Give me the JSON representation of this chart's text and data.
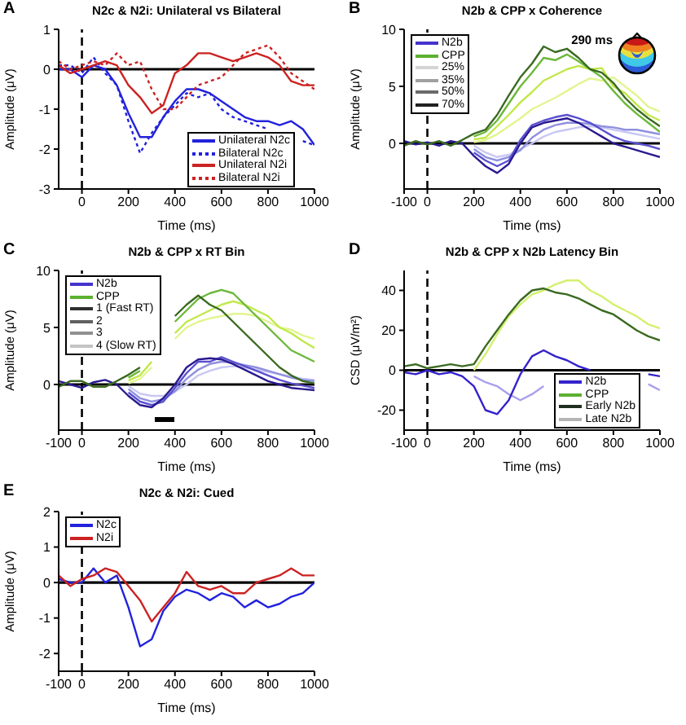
{
  "chart_data": [
    {
      "type": "line",
      "title": "N2c & N2i: Unilateral vs Bilateral",
      "annotations": [
        "A"
      ],
      "xlabel": "Time (ms)",
      "ylabel": "Amplitude (μV)",
      "xlim": [
        -100,
        1000
      ],
      "xticks": [
        0,
        200,
        400,
        600,
        800,
        1000
      ],
      "ylim": [
        -3,
        1
      ],
      "yticks": [
        -3,
        -2,
        -1,
        0,
        1
      ],
      "legend": "bottom right",
      "ref_lines": [
        {
          "axis": "y",
          "value": 0,
          "color": "#000000"
        },
        {
          "axis": "x",
          "value": 0,
          "color": "#000000",
          "line_style": "dashed"
        }
      ],
      "x": [
        -100,
        -50,
        0,
        50,
        100,
        150,
        200,
        250,
        300,
        350,
        400,
        450,
        500,
        550,
        600,
        650,
        700,
        750,
        800,
        850,
        900,
        950,
        1000
      ],
      "series": [
        {
          "name": "Unilateral N2c",
          "color": "#2222dd",
          "line_style": "solid",
          "values": [
            0,
            0,
            -0.2,
            0.1,
            0,
            -0.4,
            -1.1,
            -1.7,
            -1.7,
            -1.2,
            -0.8,
            -0.5,
            -0.5,
            -0.6,
            -0.8,
            -1.0,
            -1.2,
            -1.3,
            -1.3,
            -1.4,
            -1.3,
            -1.5,
            -1.9
          ]
        },
        {
          "name": "Bilateral N2c",
          "color": "#2222dd",
          "line_style": "dotted",
          "values": [
            0.1,
            0.1,
            -0.1,
            0.3,
            -0.1,
            -0.4,
            -1.3,
            -2.1,
            -1.6,
            -1.2,
            -0.9,
            -0.6,
            -0.7,
            -0.6,
            -1.0,
            -1.2,
            -1.3,
            -1.4,
            -1.5,
            null,
            null,
            -1.8,
            -1.9
          ]
        },
        {
          "name": "Unilateral N2i",
          "color": "#cc2222",
          "line_style": "solid",
          "values": [
            0.1,
            -0.1,
            0,
            0.1,
            0.2,
            0.1,
            -0.4,
            -0.7,
            -1.1,
            -0.9,
            -0.1,
            0.1,
            0.4,
            0.4,
            0.3,
            0.2,
            0.3,
            0.4,
            0.3,
            0.1,
            -0.3,
            -0.4,
            -0.4
          ]
        },
        {
          "name": "Bilateral N2i",
          "color": "#cc2222",
          "line_style": "dotted",
          "values": [
            0.2,
            0,
            0.1,
            0.2,
            0.1,
            0.4,
            0.1,
            0.2,
            -0.5,
            -1.0,
            -1.0,
            -0.7,
            -0.4,
            -0.3,
            -0.2,
            0.1,
            0.4,
            0.5,
            0.6,
            0.3,
            -0.1,
            -0.3,
            -0.5
          ]
        }
      ]
    },
    {
      "type": "line",
      "title": "N2b & CPP x Coherence",
      "annotations": [
        "B",
        "290 ms"
      ],
      "xlabel": "Time (ms)",
      "ylabel": "Amplitude (μV)",
      "xlim": [
        -100,
        1000
      ],
      "xticks": [
        -100,
        0,
        200,
        400,
        600,
        800,
        1000
      ],
      "ylim": [
        -4,
        10
      ],
      "yticks": [
        0,
        5,
        10
      ],
      "legend": "top left",
      "ref_lines": [
        {
          "axis": "y",
          "value": 0,
          "color": "#000000"
        },
        {
          "axis": "x",
          "value": 0,
          "color": "#000000",
          "line_style": "dashed"
        }
      ],
      "x": [
        -100,
        -50,
        0,
        50,
        100,
        150,
        200,
        250,
        300,
        350,
        400,
        450,
        500,
        550,
        600,
        650,
        700,
        750,
        800,
        850,
        900,
        950,
        1000
      ],
      "series": [
        {
          "name": "N2b",
          "color": "#4433cc",
          "values": [
            null,
            null,
            null,
            null,
            null,
            null,
            null,
            null,
            null,
            null,
            null,
            null,
            null,
            null,
            null,
            null,
            null,
            null,
            null,
            null,
            null,
            null,
            null
          ]
        },
        {
          "name": "CPP",
          "color": "#5cb030",
          "values": [
            null,
            null,
            null,
            null,
            null,
            null,
            null,
            null,
            null,
            null,
            null,
            null,
            null,
            null,
            null,
            null,
            null,
            null,
            null,
            null,
            null,
            null,
            null
          ]
        },
        {
          "name": "25%",
          "color": "#d4d4d4",
          "values": [
            null,
            null,
            null,
            null,
            null,
            null,
            null,
            null,
            null,
            null,
            null,
            null,
            null,
            null,
            null,
            null,
            null,
            null,
            null,
            null,
            null,
            null,
            null
          ]
        },
        {
          "name": "35%",
          "color": "#a0a0a0",
          "values": [
            null,
            null,
            null,
            null,
            null,
            null,
            null,
            null,
            null,
            null,
            null,
            null,
            null,
            null,
            null,
            null,
            null,
            null,
            null,
            null,
            null,
            null,
            null
          ]
        },
        {
          "name": "50%",
          "color": "#6a6a6a",
          "values": [
            null,
            null,
            null,
            null,
            null,
            null,
            null,
            null,
            null,
            null,
            null,
            null,
            null,
            null,
            null,
            null,
            null,
            null,
            null,
            null,
            null,
            null,
            null
          ]
        },
        {
          "name": "70%",
          "color": "#202020",
          "values": [
            null,
            null,
            null,
            null,
            null,
            null,
            null,
            null,
            null,
            null,
            null,
            null,
            null,
            null,
            null,
            null,
            null,
            null,
            null,
            null,
            null,
            null,
            null
          ]
        },
        {
          "color": "#c8c8f4",
          "values": [
            null,
            null,
            null,
            null,
            null,
            null,
            -0.2,
            -0.8,
            -1.2,
            -1.0,
            -0.5,
            0,
            0.6,
            1.0,
            1.2,
            1.4,
            1.5,
            1.4,
            1.2,
            1.0,
            0.8,
            0.6,
            0.4
          ]
        },
        {
          "color": "#9090e0",
          "values": [
            null,
            null,
            null,
            null,
            null,
            null,
            -0.5,
            -1.2,
            -1.5,
            -1.2,
            -0.6,
            0.5,
            1.2,
            1.6,
            1.8,
            1.8,
            1.7,
            1.5,
            1.4,
            1.2,
            1.2,
            1.0,
            0.8
          ]
        },
        {
          "color": "#5a50d0",
          "values": [
            null,
            null,
            null,
            null,
            null,
            null,
            -0.8,
            -1.5,
            -2.0,
            -1.5,
            0.3,
            1.6,
            2.0,
            2.3,
            2.5,
            2.2,
            1.8,
            1.2,
            0.6,
            0.2,
            0,
            -0.2,
            -0.5
          ]
        },
        {
          "color": "#2a1a90",
          "values": [
            0.2,
            -0.1,
            0.1,
            -0.2,
            0.2,
            0,
            -1.1,
            -2.0,
            -2.6,
            -1.8,
            0,
            1.4,
            1.8,
            2.0,
            2.2,
            1.8,
            1.2,
            0.6,
            0,
            -0.3,
            -0.6,
            -0.9,
            -1.2
          ]
        },
        {
          "color": "#e2f590",
          "values": [
            null,
            null,
            null,
            null,
            null,
            null,
            0.1,
            0.3,
            0.8,
            1.5,
            2.2,
            3.0,
            3.5,
            4.0,
            4.6,
            5.2,
            5.7,
            5.5,
            5.8,
            5.0,
            4.2,
            3.2,
            2.8
          ]
        },
        {
          "color": "#c0e848",
          "values": [
            null,
            null,
            null,
            null,
            null,
            null,
            0.35,
            0.5,
            1.5,
            2.5,
            3.6,
            4.5,
            5.5,
            6.0,
            6.5,
            6.8,
            6.5,
            6.6,
            5.0,
            4.4,
            3.4,
            2.5,
            2.0
          ]
        },
        {
          "color": "#6cb83a",
          "values": [
            null,
            null,
            null,
            null,
            null,
            null,
            0.6,
            1.0,
            2.0,
            3.5,
            5.0,
            6.2,
            7.5,
            7.3,
            7.8,
            7.2,
            6.5,
            5.8,
            4.6,
            3.5,
            2.6,
            1.8,
            1.0
          ]
        },
        {
          "color": "#3a6a20",
          "values": [
            -0.2,
            0.2,
            -0.1,
            0.2,
            -0.2,
            0.3,
            0.85,
            1.2,
            2.5,
            4.2,
            5.8,
            7.0,
            8.5,
            8.0,
            8.3,
            7.5,
            6.5,
            6.2,
            5.3,
            4.0,
            3.0,
            2.2,
            1.5
          ]
        }
      ]
    },
    {
      "type": "line",
      "title": "N2b & CPP x RT Bin",
      "annotations": [
        "C"
      ],
      "xlabel": "Time (ms)",
      "ylabel": "Amplitude (μV)",
      "xlim": [
        -100,
        1000
      ],
      "xticks": [
        -100,
        0,
        200,
        400,
        600,
        800,
        1000
      ],
      "ylim": [
        -4,
        10
      ],
      "yticks": [
        0,
        5,
        10
      ],
      "legend": "top left",
      "ref_lines": [
        {
          "axis": "y",
          "value": 0,
          "color": "#000000"
        },
        {
          "axis": "x",
          "value": 0,
          "color": "#000000",
          "line_style": "dashed"
        }
      ],
      "x": [
        -100,
        -50,
        0,
        50,
        100,
        150,
        200,
        250,
        300,
        350,
        400,
        450,
        500,
        550,
        600,
        650,
        700,
        750,
        800,
        850,
        900,
        950,
        1000
      ],
      "series": [
        {
          "name": "N2b",
          "color": "#4433cc",
          "values": [
            null,
            null,
            null,
            null,
            null,
            null,
            null,
            null,
            null,
            null,
            null,
            null,
            null,
            null,
            null,
            null,
            null,
            null,
            null,
            null,
            null,
            null,
            null
          ]
        },
        {
          "name": "CPP",
          "color": "#5cb030",
          "values": [
            null,
            null,
            null,
            null,
            null,
            null,
            null,
            null,
            null,
            null,
            null,
            null,
            null,
            null,
            null,
            null,
            null,
            null,
            null,
            null,
            null,
            null,
            null
          ]
        },
        {
          "name": "1 (Fast RT)",
          "color": "#303030",
          "values": [
            null,
            null,
            null,
            null,
            null,
            null,
            null,
            null,
            null,
            null,
            null,
            null,
            null,
            null,
            null,
            null,
            null,
            null,
            null,
            null,
            null,
            null,
            null
          ]
        },
        {
          "name": "2",
          "color": "#606060",
          "values": [
            null,
            null,
            null,
            null,
            null,
            null,
            null,
            null,
            null,
            null,
            null,
            null,
            null,
            null,
            null,
            null,
            null,
            null,
            null,
            null,
            null,
            null,
            null
          ]
        },
        {
          "name": "3",
          "color": "#909090",
          "values": [
            null,
            null,
            null,
            null,
            null,
            null,
            null,
            null,
            null,
            null,
            null,
            null,
            null,
            null,
            null,
            null,
            null,
            null,
            null,
            null,
            null,
            null,
            null
          ]
        },
        {
          "name": "4 (Slow RT)",
          "color": "#c4c4c4",
          "values": [
            null,
            null,
            null,
            null,
            null,
            null,
            null,
            null,
            null,
            null,
            null,
            null,
            null,
            null,
            null,
            null,
            null,
            null,
            null,
            null,
            null,
            null,
            null
          ]
        },
        {
          "color": "#c8c8f4",
          "values": [
            null,
            null,
            null,
            null,
            null,
            null,
            -0.15,
            -0.8,
            -1.0,
            -1.0,
            -0.6,
            0,
            0.8,
            1.2,
            1.5,
            1.6,
            1.5,
            1.3,
            1.1,
            0.9,
            0.7,
            0.5,
            0.4
          ]
        },
        {
          "color": "#9090e0",
          "values": [
            null,
            null,
            null,
            null,
            null,
            null,
            -0.4,
            -1.2,
            -1.5,
            -1.3,
            -0.6,
            0.5,
            1.3,
            1.8,
            2.0,
            1.9,
            1.7,
            1.5,
            1.2,
            0.9,
            0.6,
            0.4,
            0.3
          ]
        },
        {
          "color": "#5a50d0",
          "values": [
            null,
            null,
            null,
            null,
            null,
            null,
            -0.7,
            -1.5,
            -1.8,
            -1.5,
            -0.3,
            1.0,
            2.0,
            2.0,
            2.4,
            2.0,
            1.6,
            1.2,
            0.8,
            0.4,
            0.1,
            -0.1,
            -0.3
          ]
        },
        {
          "color": "#2a1a90",
          "values": [
            0.3,
            0,
            -0.3,
            0.2,
            0.4,
            0,
            -1.0,
            -1.8,
            -2.0,
            -1.2,
            0,
            1.5,
            2.2,
            2.3,
            2.2,
            1.8,
            1.3,
            0.8,
            0.3,
            0,
            -0.3,
            -0.4,
            -0.5
          ]
        },
        {
          "color": "#e2f590",
          "values": [
            null,
            null,
            null,
            null,
            null,
            null,
            0.1,
            0.5,
            1.5,
            null,
            4.0,
            5.0,
            5.5,
            5.8,
            6.0,
            6.2,
            6.2,
            6.0,
            5.5,
            5.0,
            4.8,
            4.3,
            4.0
          ]
        },
        {
          "color": "#c0e848",
          "values": [
            null,
            null,
            null,
            null,
            null,
            null,
            0.35,
            0.8,
            2.0,
            null,
            4.5,
            5.5,
            6.0,
            6.5,
            7.0,
            7.3,
            7.0,
            6.5,
            6.0,
            5.0,
            4.5,
            3.8,
            3.2
          ]
        },
        {
          "color": "#6cb83a",
          "values": [
            null,
            null,
            null,
            null,
            null,
            null,
            0.6,
            1.2,
            null,
            null,
            5.5,
            6.5,
            7.5,
            8.0,
            8.3,
            8.0,
            7.0,
            6.0,
            5.0,
            4.0,
            3.0,
            2.5,
            2.0
          ]
        },
        {
          "color": "#3a6a20",
          "values": [
            -0.2,
            0.3,
            0.3,
            -0.2,
            -0.2,
            0.3,
            0.85,
            1.5,
            null,
            null,
            6.0,
            7.0,
            7.8,
            7.0,
            6.5,
            5.5,
            4.5,
            3.5,
            2.5,
            1.5,
            0.8,
            0.3,
            0.1
          ]
        }
      ]
    },
    {
      "type": "line",
      "title": "N2b & CPP x N2b Latency Bin",
      "annotations": [
        "D"
      ],
      "xlabel": "Time (ms)",
      "ylabel": "CSD (μV/m²)",
      "xlim": [
        -100,
        1000
      ],
      "xticks": [
        -100,
        0,
        200,
        400,
        600,
        800,
        1000
      ],
      "ylim": [
        -30,
        50
      ],
      "yticks": [
        -20,
        0,
        20,
        40
      ],
      "legend": "bottom right",
      "ref_lines": [
        {
          "axis": "y",
          "value": 0,
          "color": "#000000"
        },
        {
          "axis": "x",
          "value": 0,
          "color": "#000000",
          "line_style": "dashed"
        }
      ],
      "x": [
        -100,
        -50,
        0,
        50,
        100,
        150,
        200,
        250,
        300,
        350,
        400,
        450,
        500,
        550,
        600,
        650,
        700,
        750,
        800,
        850,
        900,
        950,
        1000
      ],
      "series": [
        {
          "name": "N2b",
          "color": "#3322cc",
          "values": [
            null,
            null,
            null,
            null,
            null,
            null,
            null,
            null,
            null,
            null,
            null,
            null,
            null,
            null,
            null,
            null,
            null,
            null,
            null,
            null,
            null,
            null,
            null
          ]
        },
        {
          "name": "CPP",
          "color": "#5cb030",
          "values": [
            null,
            null,
            null,
            null,
            null,
            null,
            null,
            null,
            null,
            null,
            null,
            null,
            null,
            null,
            null,
            null,
            null,
            null,
            null,
            null,
            null,
            null,
            null
          ]
        },
        {
          "name": "Early N2b",
          "color": "#203020",
          "values": [
            null,
            null,
            null,
            null,
            null,
            null,
            null,
            null,
            null,
            null,
            null,
            null,
            null,
            null,
            null,
            null,
            null,
            null,
            null,
            null,
            null,
            null,
            null
          ]
        },
        {
          "name": "Late N2b",
          "color": "#b4b4b4",
          "values": [
            null,
            null,
            null,
            null,
            null,
            null,
            null,
            null,
            null,
            null,
            null,
            null,
            null,
            null,
            null,
            null,
            null,
            null,
            null,
            null,
            null,
            null,
            null
          ]
        },
        {
          "color": "#a8a0ec",
          "values": [
            null,
            null,
            null,
            null,
            null,
            null,
            -3,
            -6,
            -8,
            -12,
            -15,
            -12,
            -8,
            null,
            null,
            null,
            null,
            null,
            null,
            null,
            null,
            -7,
            -10
          ]
        },
        {
          "color": "#3322cc",
          "values": [
            -1,
            -2,
            0,
            -2,
            -1,
            -3,
            -8,
            -20,
            -22,
            -15,
            -2,
            7,
            10,
            7,
            5,
            2,
            0,
            null,
            null,
            null,
            null,
            -2,
            -3
          ]
        },
        {
          "color": "#d4f070",
          "values": [
            null,
            null,
            null,
            null,
            null,
            null,
            0,
            8,
            18,
            27,
            33,
            38,
            40,
            43,
            45,
            45,
            40,
            37,
            33,
            30,
            27,
            23,
            21
          ]
        },
        {
          "color": "#3a6a20",
          "values": [
            2,
            3,
            1,
            2,
            3,
            2,
            3,
            12,
            20,
            28,
            35,
            40,
            41,
            39,
            38,
            36,
            33,
            30,
            28,
            24,
            20,
            17,
            15
          ]
        }
      ]
    },
    {
      "type": "line",
      "title": "N2c & N2i: Cued",
      "annotations": [
        "E"
      ],
      "xlabel": "Time (ms)",
      "ylabel": "Amplitude (μV)",
      "xlim": [
        -100,
        1000
      ],
      "xticks": [
        -100,
        0,
        200,
        400,
        600,
        800,
        1000
      ],
      "ylim": [
        -2.5,
        2
      ],
      "yticks": [
        -2,
        -1,
        0,
        1,
        2
      ],
      "legend": "top left",
      "ref_lines": [
        {
          "axis": "y",
          "value": 0,
          "color": "#000000"
        },
        {
          "axis": "x",
          "value": 0,
          "color": "#000000",
          "line_style": "dashed"
        }
      ],
      "x": [
        -100,
        -50,
        0,
        50,
        100,
        150,
        200,
        250,
        300,
        350,
        400,
        450,
        500,
        550,
        600,
        650,
        700,
        750,
        800,
        850,
        900,
        950,
        1000
      ],
      "series": [
        {
          "name": "N2c",
          "color": "#2222dd",
          "values": [
            0.1,
            0,
            0,
            0.4,
            0,
            0.2,
            -0.7,
            -1.8,
            -1.6,
            -0.8,
            -0.4,
            -0.2,
            -0.3,
            -0.5,
            -0.3,
            -0.4,
            -0.7,
            -0.5,
            -0.7,
            -0.6,
            -0.4,
            -0.3,
            0
          ]
        },
        {
          "name": "N2i",
          "color": "#cc2222",
          "values": [
            0.2,
            -0.1,
            0.1,
            0.2,
            0.4,
            0.3,
            -0.1,
            -0.5,
            -1.1,
            -0.7,
            -0.3,
            0.3,
            -0.1,
            -0.2,
            -0.1,
            -0.3,
            -0.3,
            0,
            0.1,
            0.2,
            0.4,
            0.2,
            0.2
          ]
        }
      ]
    }
  ]
}
